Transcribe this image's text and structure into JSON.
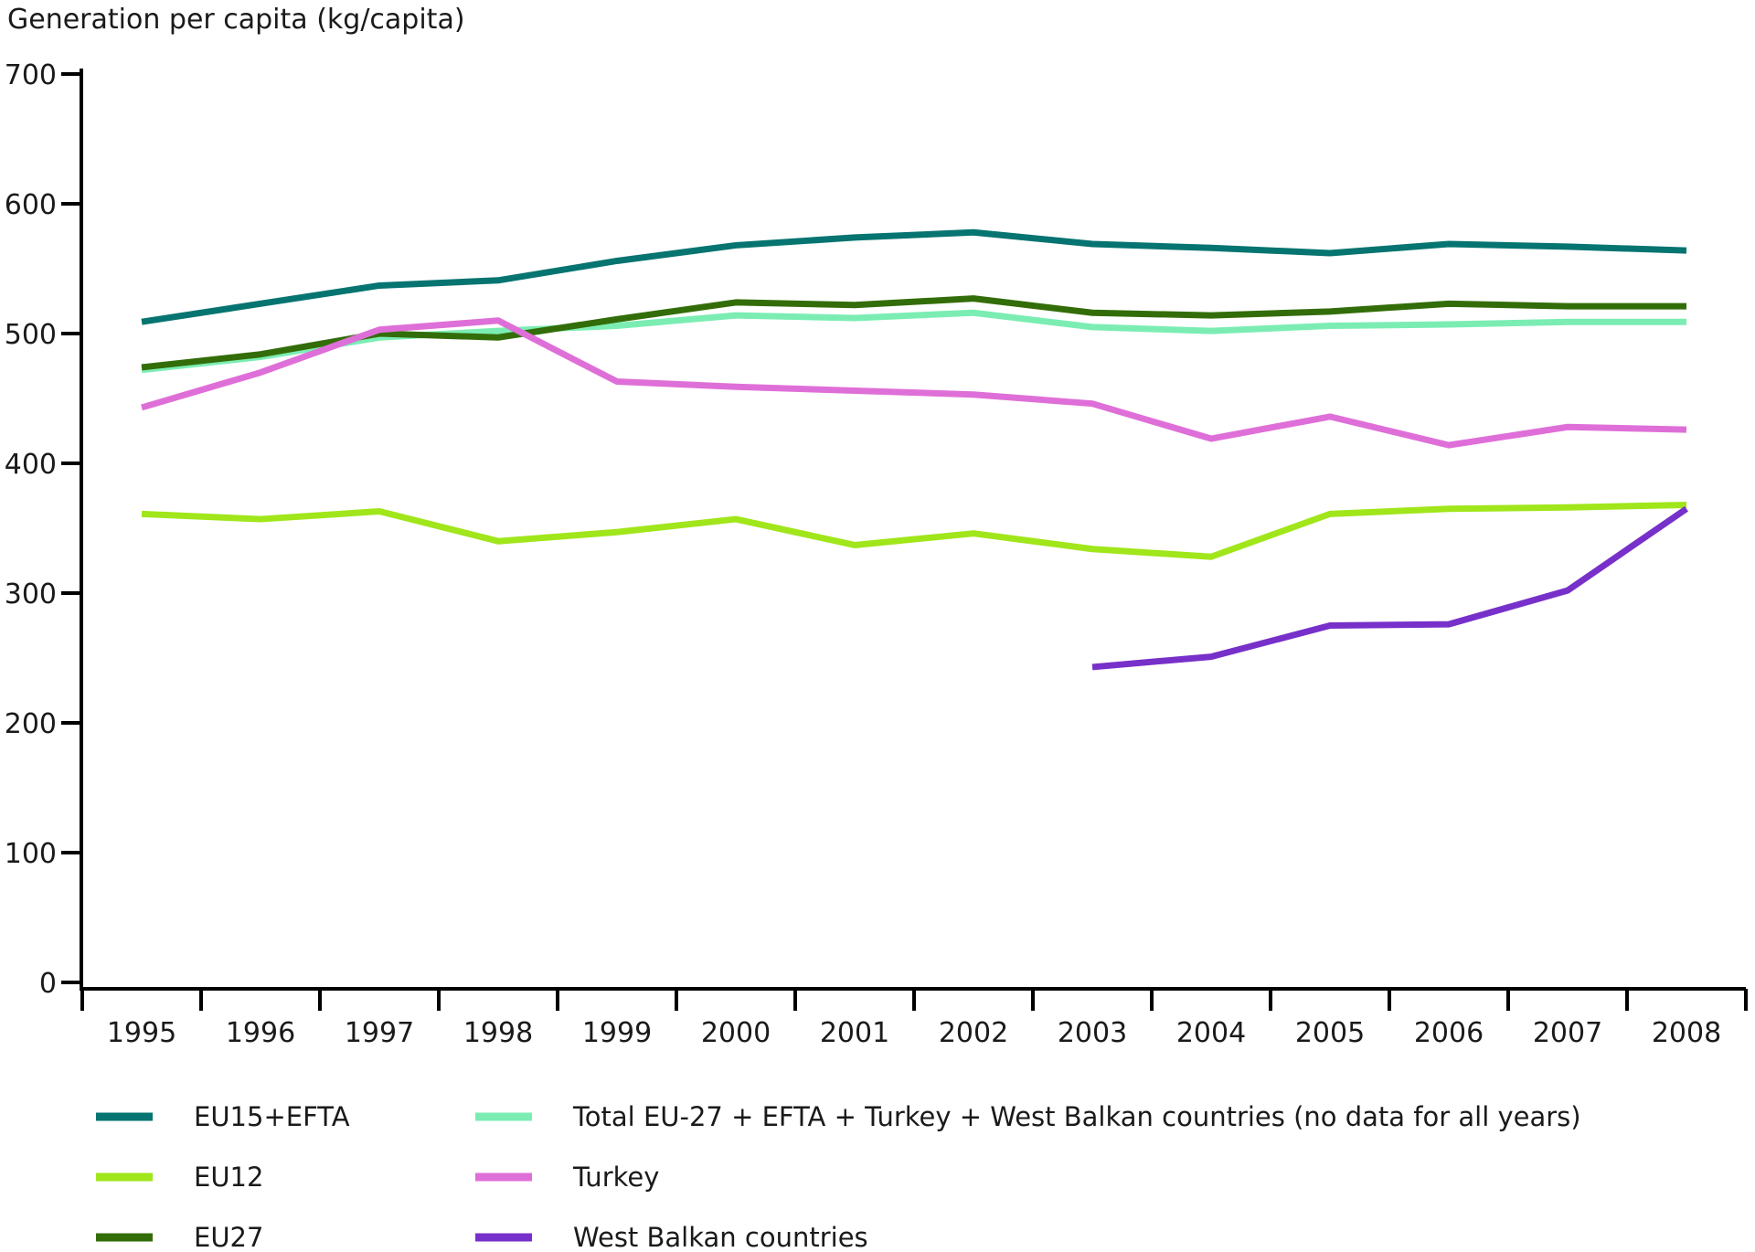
{
  "title": "Generation per capita (kg/capita)",
  "chart_data": {
    "type": "line",
    "title": "Generation per capita (kg/capita)",
    "xlabel": "",
    "ylabel": "kg/capita",
    "x": [
      1995,
      1996,
      1997,
      1998,
      1999,
      2000,
      2001,
      2002,
      2003,
      2004,
      2005,
      2006,
      2007,
      2008
    ],
    "ylim": [
      0,
      700
    ],
    "ytick_step": 100,
    "yticks": [
      0,
      100,
      200,
      300,
      400,
      500,
      600,
      700
    ],
    "grid": false,
    "legend_position": "bottom",
    "series": [
      {
        "name": "EU15+EFTA",
        "color": "#067470",
        "values": [
          509,
          523,
          537,
          541,
          556,
          568,
          574,
          578,
          569,
          566,
          562,
          569,
          567,
          564
        ]
      },
      {
        "name": "Total EU-27 + EFTA + Turkey + West Balkan countries (no data for all years)",
        "color": "#7BEDB3",
        "values": [
          472,
          482,
          497,
          502,
          506,
          514,
          512,
          516,
          505,
          502,
          506,
          507,
          509,
          509
        ]
      },
      {
        "name": "EU12",
        "color": "#A0E61A",
        "values": [
          361,
          357,
          363,
          340,
          347,
          357,
          337,
          346,
          334,
          328,
          361,
          365,
          366,
          368
        ]
      },
      {
        "name": "EU27",
        "color": "#336D09",
        "values": [
          474,
          484,
          500,
          497,
          511,
          524,
          522,
          527,
          516,
          514,
          517,
          523,
          521,
          521
        ]
      },
      {
        "name": "Turkey",
        "color": "#DF6FD8",
        "values": [
          443,
          470,
          503,
          510,
          463,
          459,
          456,
          453,
          446,
          419,
          436,
          414,
          428,
          426
        ]
      },
      {
        "name": "West Balkan countries",
        "color": "#7730C9",
        "values": [
          null,
          null,
          null,
          null,
          null,
          null,
          null,
          null,
          243,
          251,
          275,
          276,
          302,
          365
        ]
      }
    ]
  },
  "legend": {
    "position": "bottom",
    "columns": [
      [
        "EU15+EFTA",
        "EU12",
        "EU27"
      ],
      [
        "Total EU-27 + EFTA + Turkey + West Balkan countries (no data for all years)",
        "Turkey",
        "West Balkan countries"
      ]
    ]
  }
}
